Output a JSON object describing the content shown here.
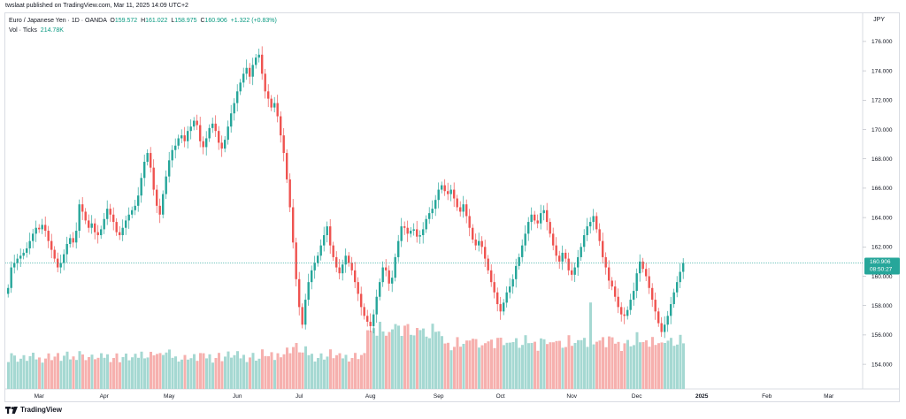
{
  "header": {
    "published": "twslaat published on TradingView.com, Mar 11, 2025 14:09 UTC+2",
    "symbol": "Euro / Japanese Yen · 1D · OANDA",
    "o_label": "O",
    "o_value": "159.572",
    "h_label": "H",
    "h_value": "161.022",
    "l_label": "L",
    "l_value": "158.975",
    "c_label": "C",
    "c_value": "160.906",
    "change": "+1.322 (+0.83%)",
    "vol_label": "Vol · Ticks",
    "vol_value": "214.78K",
    "currency": "JPY"
  },
  "price_tag": {
    "price": "160.906",
    "countdown": "08:50:27"
  },
  "footer": {
    "brand": "TradingView"
  },
  "colors": {
    "up": "#26a69a",
    "down": "#ef5350",
    "up_vol": "#a5d8d2",
    "down_vol": "#f6b0ae",
    "price_line": "#26a69a"
  },
  "chart_data": {
    "type": "candlestick",
    "title": "Euro / Japanese Yen · 1D · OANDA",
    "ylim": [
      152.5,
      177.5
    ],
    "y_ticks": [
      "154.000",
      "156.000",
      "158.000",
      "160.000",
      "162.000",
      "164.000",
      "166.000",
      "168.000",
      "170.000",
      "172.000",
      "174.000",
      "176.000"
    ],
    "x_ticks": [
      {
        "label": "Mar",
        "index": 10
      },
      {
        "label": "Apr",
        "index": 31
      },
      {
        "label": "May",
        "index": 52
      },
      {
        "label": "Jun",
        "index": 74
      },
      {
        "label": "Jul",
        "index": 94
      },
      {
        "label": "Aug",
        "index": 117
      },
      {
        "label": "Sep",
        "index": 139
      },
      {
        "label": "Oct",
        "index": 159
      },
      {
        "label": "Nov",
        "index": 182
      },
      {
        "label": "Dec",
        "index": 203
      },
      {
        "label": "2025",
        "index": 224
      },
      {
        "label": "Feb",
        "index": 245
      },
      {
        "label": "Mar",
        "index": 265
      }
    ],
    "last_close": 160.906,
    "closes": [
      159.2,
      160.6,
      160.9,
      161.2,
      161.4,
      161.6,
      161.9,
      162.4,
      162.9,
      163.3,
      163.2,
      163.5,
      163.1,
      162.4,
      161.8,
      161.2,
      160.6,
      160.9,
      161.5,
      162.2,
      162.6,
      162.3,
      163.1,
      164.9,
      164.4,
      163.8,
      163.3,
      163.6,
      163.0,
      162.8,
      163.2,
      163.9,
      164.6,
      164.2,
      163.7,
      163.0,
      162.8,
      163.3,
      163.8,
      164.2,
      164.5,
      164.8,
      165.5,
      166.7,
      167.8,
      168.4,
      167.4,
      165.9,
      164.8,
      164.2,
      165.6,
      166.8,
      167.9,
      168.6,
      168.9,
      169.4,
      169.6,
      169.2,
      169.9,
      170.2,
      170.6,
      170.3,
      169.2,
      168.8,
      169.4,
      170.1,
      170.4,
      169.9,
      169.1,
      168.7,
      169.3,
      170.2,
      171.1,
      171.8,
      172.6,
      173.2,
      173.8,
      174.2,
      173.6,
      174.4,
      174.9,
      175.1,
      173.8,
      172.6,
      172.1,
      171.5,
      171.8,
      170.9,
      169.6,
      168.4,
      166.6,
      164.7,
      162.3,
      159.8,
      157.9,
      156.7,
      158.4,
      159.6,
      160.4,
      160.9,
      161.4,
      162.1,
      162.8,
      163.4,
      162.1,
      161.3,
      160.6,
      160.2,
      160.8,
      161.4,
      160.9,
      160.4,
      159.6,
      158.8,
      157.9,
      157.3,
      156.9,
      156.6,
      157.4,
      158.6,
      159.6,
      160.6,
      160.4,
      159.5,
      159.9,
      161.3,
      162.4,
      163.4,
      163.3,
      162.9,
      163.1,
      163.2,
      162.7,
      162.8,
      163.2,
      163.9,
      164.3,
      164.6,
      165.2,
      165.9,
      166.2,
      165.8,
      165.6,
      165.9,
      165.3,
      164.7,
      164.4,
      164.9,
      164.1,
      163.3,
      162.5,
      162.1,
      162.4,
      162.0,
      161.2,
      160.4,
      159.6,
      158.9,
      158.1,
      157.6,
      158.2,
      158.9,
      159.3,
      159.8,
      160.7,
      161.3,
      162.1,
      162.9,
      163.7,
      164.2,
      163.8,
      163.6,
      164.3,
      164.5,
      163.7,
      162.9,
      162.1,
      161.4,
      161.0,
      161.6,
      161.2,
      160.4,
      160.1,
      160.6,
      161.3,
      162.0,
      162.8,
      163.4,
      163.7,
      164.1,
      163.2,
      162.4,
      161.3,
      160.6,
      159.7,
      159.3,
      158.6,
      157.9,
      157.4,
      157.3,
      157.7,
      158.4,
      159.0,
      160.2,
      161.0,
      160.5,
      160.0,
      159.2,
      158.4,
      157.6,
      156.8,
      156.2,
      156.7,
      157.3,
      158.1,
      158.9,
      159.6,
      160.3,
      160.9
    ]
  }
}
